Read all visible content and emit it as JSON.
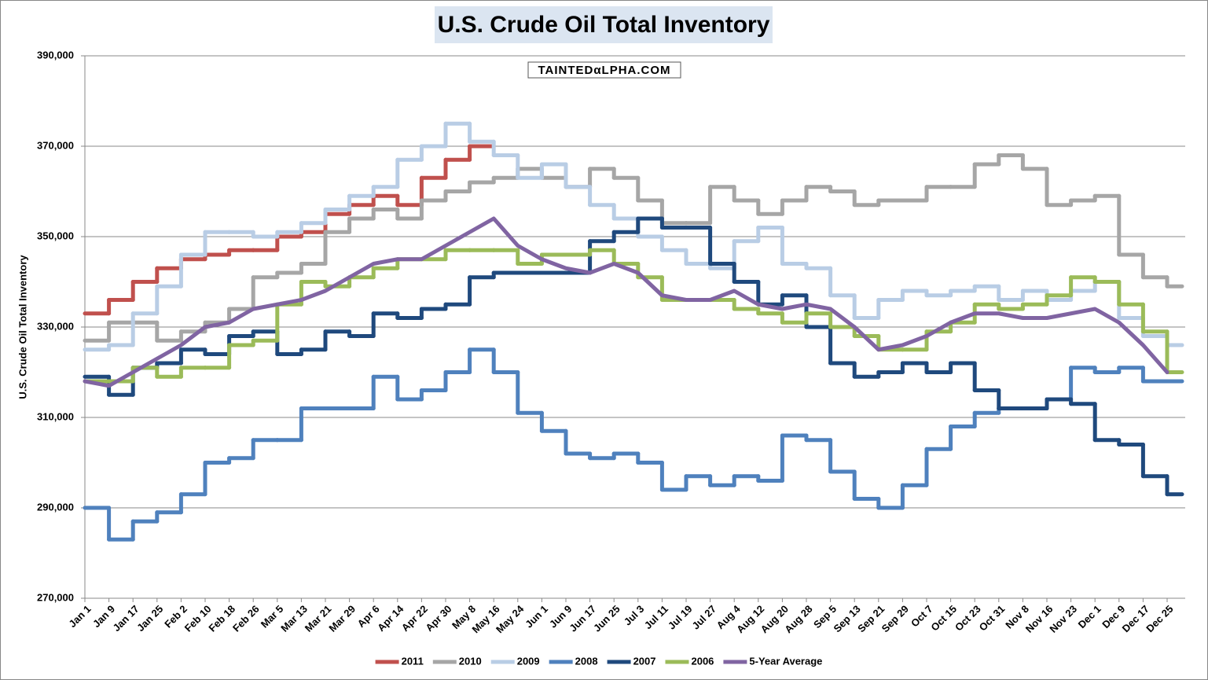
{
  "chart_data": {
    "type": "line",
    "title": "U.S. Crude Oil Total Inventory",
    "watermark": "TAINTEDαLPHA.COM",
    "y_label": "U.S. Crude Oil Total Inventory",
    "categories": [
      "Jan 1",
      "Jan 9",
      "Jan 17",
      "Jan 25",
      "Feb 2",
      "Feb 10",
      "Feb 18",
      "Feb 26",
      "Mar 5",
      "Mar 13",
      "Mar 21",
      "Mar 29",
      "Apr 6",
      "Apr 14",
      "Apr 22",
      "Apr 30",
      "May 8",
      "May 16",
      "May 24",
      "Jun 1",
      "Jun 9",
      "Jun 17",
      "Jun 25",
      "Jul 3",
      "Jul 11",
      "Jul 19",
      "Jul 27",
      "Aug 4",
      "Aug 12",
      "Aug 20",
      "Aug 28",
      "Sep 5",
      "Sep 13",
      "Sep 21",
      "Sep 29",
      "Oct 7",
      "Oct 15",
      "Oct 23",
      "Oct 31",
      "Nov 8",
      "Nov 16",
      "Nov 23",
      "Dec 1",
      "Dec 9",
      "Dec 17",
      "Dec 25"
    ],
    "ylim": [
      270000,
      390000
    ],
    "yticks": [
      {
        "value": 270000,
        "label": "270,000"
      },
      {
        "value": 290000,
        "label": "290,000"
      },
      {
        "value": 310000,
        "label": "310,000"
      },
      {
        "value": 330000,
        "label": "330,000"
      },
      {
        "value": 350000,
        "label": "350,000"
      },
      {
        "value": 370000,
        "label": "370,000"
      },
      {
        "value": 390000,
        "label": "390,000"
      }
    ],
    "grid": true,
    "legend": "bottom",
    "series": [
      {
        "name": "2011",
        "color": "#c0504d",
        "step": true,
        "values": [
          333000,
          336000,
          340000,
          343000,
          345000,
          346000,
          347000,
          347000,
          350000,
          351000,
          355000,
          357000,
          359000,
          357000,
          363000,
          367000,
          370000,
          null,
          null,
          null,
          null,
          null,
          null,
          null,
          null,
          null,
          null,
          null,
          null,
          null,
          null,
          null,
          null,
          null,
          null,
          null,
          null,
          null,
          null,
          null,
          null,
          null,
          null,
          null,
          null,
          null
        ]
      },
      {
        "name": "2010",
        "color": "#a6a6a6",
        "step": true,
        "values": [
          327000,
          331000,
          331000,
          327000,
          329000,
          331000,
          334000,
          341000,
          342000,
          344000,
          351000,
          354000,
          356000,
          354000,
          358000,
          360000,
          362000,
          363000,
          365000,
          363000,
          361000,
          365000,
          363000,
          358000,
          353000,
          353000,
          361000,
          358000,
          355000,
          358000,
          361000,
          360000,
          357000,
          358000,
          358000,
          361000,
          361000,
          366000,
          368000,
          365000,
          357000,
          358000,
          359000,
          346000,
          341000,
          339000
        ]
      },
      {
        "name": "2009",
        "color": "#b9cde5",
        "step": true,
        "values": [
          325000,
          326000,
          333000,
          339000,
          346000,
          351000,
          351000,
          350000,
          351000,
          353000,
          356000,
          359000,
          361000,
          367000,
          370000,
          375000,
          371000,
          368000,
          363000,
          366000,
          361000,
          357000,
          354000,
          350000,
          347000,
          344000,
          343000,
          349000,
          352000,
          344000,
          343000,
          337000,
          332000,
          336000,
          338000,
          337000,
          338000,
          339000,
          336000,
          338000,
          336000,
          338000,
          340000,
          332000,
          328000,
          326000
        ]
      },
      {
        "name": "2008",
        "color": "#4f81bd",
        "step": true,
        "values": [
          290000,
          283000,
          287000,
          289000,
          293000,
          300000,
          301000,
          305000,
          305000,
          312000,
          312000,
          312000,
          319000,
          314000,
          316000,
          320000,
          325000,
          320000,
          311000,
          307000,
          302000,
          301000,
          302000,
          300000,
          294000,
          297000,
          295000,
          297000,
          296000,
          306000,
          305000,
          298000,
          292000,
          290000,
          295000,
          303000,
          308000,
          311000,
          312000,
          312000,
          314000,
          321000,
          320000,
          321000,
          318000,
          318000
        ]
      },
      {
        "name": "2007",
        "color": "#1f497d",
        "step": true,
        "values": [
          319000,
          315000,
          321000,
          322000,
          325000,
          324000,
          328000,
          329000,
          324000,
          325000,
          329000,
          328000,
          333000,
          332000,
          334000,
          335000,
          341000,
          342000,
          342000,
          342000,
          342000,
          349000,
          351000,
          354000,
          352000,
          352000,
          344000,
          340000,
          335000,
          337000,
          330000,
          322000,
          319000,
          320000,
          322000,
          320000,
          322000,
          316000,
          312000,
          312000,
          314000,
          313000,
          305000,
          304000,
          297000,
          293000
        ]
      },
      {
        "name": "2006",
        "color": "#9bbb59",
        "step": true,
        "values": [
          318000,
          318000,
          321000,
          319000,
          321000,
          321000,
          326000,
          327000,
          335000,
          340000,
          339000,
          341000,
          343000,
          345000,
          345000,
          347000,
          347000,
          347000,
          344000,
          346000,
          346000,
          347000,
          344000,
          341000,
          336000,
          336000,
          336000,
          334000,
          333000,
          331000,
          333000,
          330000,
          328000,
          325000,
          325000,
          329000,
          331000,
          335000,
          334000,
          335000,
          337000,
          341000,
          340000,
          335000,
          329000,
          320000
        ]
      },
      {
        "name": "5-Year Average",
        "color": "#8064a2",
        "step": false,
        "values": [
          318000,
          317000,
          320000,
          323000,
          326000,
          330000,
          331000,
          334000,
          335000,
          336000,
          338000,
          341000,
          344000,
          345000,
          345000,
          348000,
          351000,
          354000,
          348000,
          345000,
          343000,
          342000,
          344000,
          342000,
          337000,
          336000,
          336000,
          338000,
          335000,
          334000,
          335000,
          334000,
          330000,
          325000,
          326000,
          328000,
          331000,
          333000,
          333000,
          332000,
          332000,
          333000,
          334000,
          331000,
          326000,
          320000
        ]
      }
    ]
  }
}
